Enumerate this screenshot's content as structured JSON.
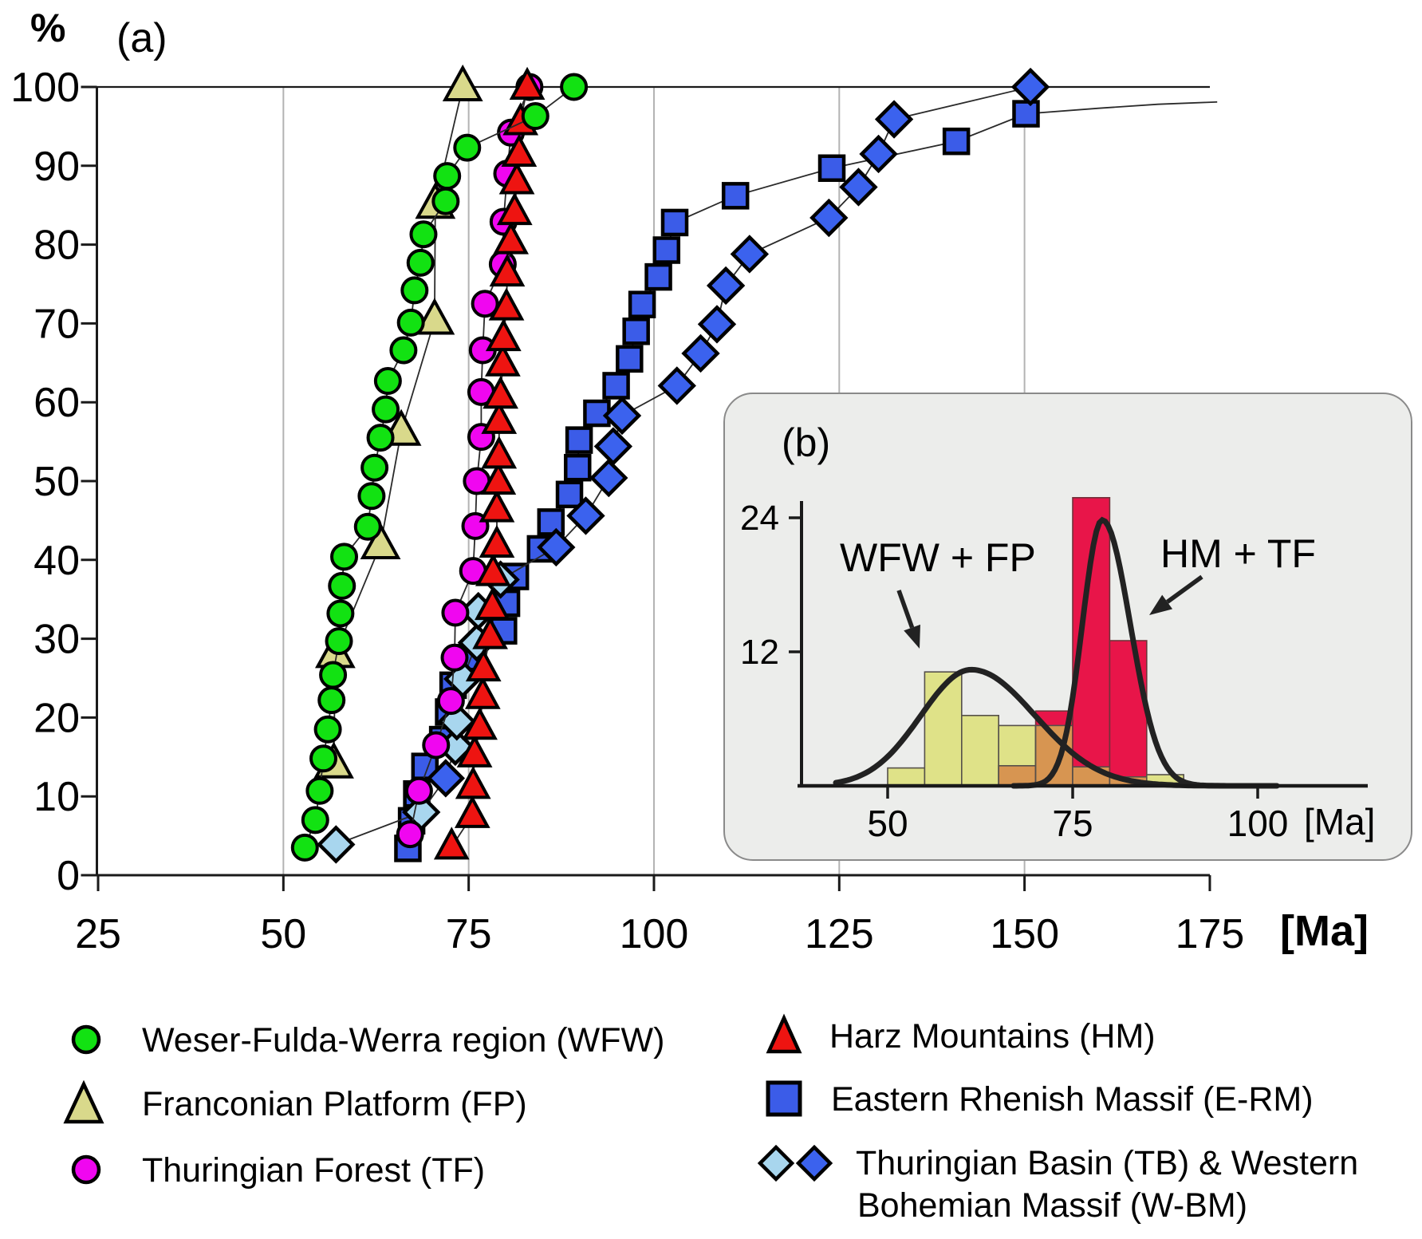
{
  "figure": {
    "panel_a": "(a)",
    "panel_b": "(b)"
  },
  "colors": {
    "wfw": "#12e212",
    "fp": "#d9d98b",
    "tf": "#f006f0",
    "hm": "#ee1411",
    "erm": "#3b5ce8",
    "tb": "#a8d6ee",
    "wbm": "#3b62ee",
    "hist_yellow": "#dfe288",
    "hist_crimson": "#e81549",
    "hist_orange": "#d79551",
    "inset_bg": "#ecedeb",
    "grid": "#b3b3b3",
    "axis": "#1a1a1a",
    "series_line": "#2a2a2a",
    "curve": "#222222"
  },
  "chart_data": [
    {
      "type": "line",
      "id": "panel_a_cumulative_ages",
      "title": "(a)",
      "xlabel": "[Ma]",
      "ylabel": "%",
      "xlim": [
        25,
        176.5
      ],
      "ylim": [
        0,
        100
      ],
      "x_ticks": [
        25,
        50,
        75,
        100,
        125,
        150,
        175
      ],
      "y_ticks": [
        0,
        10,
        20,
        30,
        40,
        50,
        60,
        70,
        80,
        90,
        100
      ],
      "gridlines_x": [
        50,
        75,
        100,
        125,
        150
      ],
      "legend_position": "below",
      "series": [
        {
          "id": "fp",
          "name": "Franconian Platform (FP)",
          "marker": "triangle-lg",
          "color_key": "fp",
          "points": [
            [
              56.8,
              14.1
            ],
            [
              57.0,
              28.1
            ],
            [
              63.1,
              41.9
            ],
            [
              65.9,
              56.3
            ],
            [
              70.4,
              70.4
            ],
            [
              70.5,
              85.1
            ],
            [
              74.2,
              100
            ]
          ]
        },
        {
          "id": "erm",
          "name": "Eastern Rhenish Massif (E-RM)",
          "marker": "square",
          "color_key": "erm",
          "points": [
            [
              66.8,
              3.4
            ],
            [
              67.3,
              6.9
            ],
            [
              68.0,
              10.3
            ],
            [
              69.1,
              13.8
            ],
            [
              71.5,
              17.2
            ],
            [
              72.3,
              20.7
            ],
            [
              72.9,
              24.1
            ],
            [
              75.0,
              27.6
            ],
            [
              79.7,
              31.0
            ],
            [
              80.1,
              34.5
            ],
            [
              81.3,
              37.9
            ],
            [
              84.7,
              41.4
            ],
            [
              86.1,
              44.8
            ],
            [
              88.6,
              48.3
            ],
            [
              89.7,
              51.7
            ],
            [
              89.9,
              55.2
            ],
            [
              92.3,
              58.6
            ],
            [
              94.9,
              62.1
            ],
            [
              96.7,
              65.5
            ],
            [
              97.6,
              69.0
            ],
            [
              98.4,
              72.4
            ],
            [
              100.6,
              75.9
            ],
            [
              101.7,
              79.3
            ],
            [
              102.8,
              82.8
            ],
            [
              111.0,
              86.2
            ],
            [
              124.0,
              89.7
            ],
            [
              140.8,
              93.1
            ],
            [
              150.2,
              96.6
            ]
          ],
          "tail": [
            [
              160,
              97.3
            ],
            [
              168,
              97.8
            ],
            [
              176,
              98.1
            ]
          ]
        },
        {
          "id": "tb_wbm",
          "name": "Thuringian Basin (TB) & Western Bohemian Massif (W-BM)",
          "marker": "diamond",
          "color_key": "wbm",
          "points": [
            [
              57.1,
              3.9,
              "tb"
            ],
            [
              68.6,
              8.0,
              "tb"
            ],
            [
              71.9,
              12.3,
              "wbm"
            ],
            [
              73.2,
              16.3,
              "tb"
            ],
            [
              73.4,
              19.5,
              "tb"
            ],
            [
              74.2,
              24.9,
              "tb"
            ],
            [
              76.1,
              29.5,
              "tb"
            ],
            [
              76.3,
              33.5,
              "tb"
            ],
            [
              79.3,
              37.5,
              "tb"
            ],
            [
              86.8,
              41.6,
              "wbm"
            ],
            [
              90.8,
              45.6,
              "wbm"
            ],
            [
              93.9,
              50.4,
              "wbm"
            ],
            [
              94.5,
              54.4,
              "wbm"
            ],
            [
              95.7,
              58.3,
              "wbm"
            ],
            [
              103.1,
              62.1,
              "wbm"
            ],
            [
              106.3,
              66.2,
              "wbm"
            ],
            [
              108.5,
              69.9,
              "wbm"
            ],
            [
              109.7,
              74.8,
              "wbm"
            ],
            [
              112.9,
              78.8,
              "wbm"
            ],
            [
              123.6,
              83.4,
              "wbm"
            ],
            [
              127.6,
              87.3,
              "wbm"
            ],
            [
              130.3,
              91.5,
              "wbm"
            ],
            [
              132.4,
              95.9,
              "wbm"
            ],
            [
              150.8,
              100,
              "wbm"
            ]
          ]
        },
        {
          "id": "tf",
          "name": "Thuringian Forest (TF)",
          "marker": "circle",
          "color_key": "tf",
          "points": [
            [
              67.1,
              5.2
            ],
            [
              68.3,
              10.7
            ],
            [
              70.6,
              16.5
            ],
            [
              72.6,
              22.1
            ],
            [
              73.1,
              27.6
            ],
            [
              73.2,
              33.3
            ],
            [
              75.6,
              38.6
            ],
            [
              75.9,
              44.3
            ],
            [
              76.1,
              50.0
            ],
            [
              76.7,
              55.6
            ],
            [
              76.7,
              61.3
            ],
            [
              76.9,
              66.6
            ],
            [
              77.2,
              72.5
            ],
            [
              79.6,
              77.5
            ],
            [
              79.7,
              82.9
            ],
            [
              80.2,
              89.0
            ],
            [
              80.7,
              94.2
            ],
            [
              83.2,
              100
            ]
          ]
        },
        {
          "id": "hm",
          "name": "Harz Mountains (HM)",
          "marker": "triangle",
          "color_key": "hm",
          "points": [
            [
              72.7,
              3.6
            ],
            [
              75.5,
              7.6
            ],
            [
              75.6,
              11.3
            ],
            [
              75.8,
              15.3
            ],
            [
              76.5,
              18.8
            ],
            [
              76.9,
              22.7
            ],
            [
              77.0,
              26.2
            ],
            [
              77.9,
              30.3
            ],
            [
              78.2,
              34.0
            ],
            [
              78.3,
              38.3
            ],
            [
              78.8,
              41.9
            ],
            [
              78.8,
              46.4
            ],
            [
              79.0,
              49.9
            ],
            [
              79.1,
              53.2
            ],
            [
              79.1,
              57.6
            ],
            [
              79.3,
              60.8
            ],
            [
              79.6,
              64.9
            ],
            [
              79.7,
              68.1
            ],
            [
              80.1,
              72.0
            ],
            [
              80.2,
              76.3
            ],
            [
              80.7,
              80.4
            ],
            [
              81.2,
              84.1
            ],
            [
              81.5,
              88.0
            ],
            [
              81.8,
              91.5
            ],
            [
              82.0,
              95.5
            ],
            [
              82.9,
              100
            ]
          ]
        },
        {
          "id": "wfw",
          "name": "Weser-Fulda-Werra region (WFW)",
          "marker": "circle",
          "color_key": "wfw",
          "points": [
            [
              52.9,
              3.5
            ],
            [
              54.3,
              7.0
            ],
            [
              54.9,
              10.7
            ],
            [
              55.4,
              14.8
            ],
            [
              56.0,
              18.5
            ],
            [
              56.5,
              22.2
            ],
            [
              56.7,
              25.4
            ],
            [
              57.5,
              29.7
            ],
            [
              57.7,
              33.2
            ],
            [
              57.9,
              36.7
            ],
            [
              58.2,
              40.4
            ],
            [
              61.4,
              44.2
            ],
            [
              61.9,
              48.1
            ],
            [
              62.3,
              51.7
            ],
            [
              63.1,
              55.5
            ],
            [
              63.8,
              59.1
            ],
            [
              64.1,
              62.7
            ],
            [
              66.2,
              66.6
            ],
            [
              67.2,
              70.1
            ],
            [
              67.7,
              74.2
            ],
            [
              68.5,
              77.7
            ],
            [
              68.9,
              81.3
            ],
            [
              71.9,
              85.5
            ],
            [
              72.1,
              88.7
            ],
            [
              74.8,
              92.3
            ],
            [
              84.0,
              96.3
            ],
            [
              89.2,
              100
            ]
          ]
        }
      ]
    },
    {
      "type": "bar",
      "id": "panel_b_histogram",
      "title": "(b)",
      "x_unit": "[Ma]",
      "x_ticks": [
        50,
        75,
        100
      ],
      "y_ticks": [
        12,
        24
      ],
      "ylim": [
        0,
        26
      ],
      "bin_width": 5,
      "bins": [
        {
          "x0": 50,
          "wfw_fp": 1.6,
          "hm_tf": 0
        },
        {
          "x0": 55,
          "wfw_fp": 10.2,
          "hm_tf": 0
        },
        {
          "x0": 60,
          "wfw_fp": 6.3,
          "hm_tf": 0
        },
        {
          "x0": 65,
          "wfw_fp": 5.4,
          "hm_tf": 1.8
        },
        {
          "x0": 70,
          "wfw_fp": 5.4,
          "hm_tf": 6.7
        },
        {
          "x0": 75,
          "wfw_fp": 1.7,
          "hm_tf": 25.8
        },
        {
          "x0": 80,
          "wfw_fp": 0.8,
          "hm_tf": 13.0
        },
        {
          "x0": 85,
          "wfw_fp": 1.0,
          "hm_tf": 0
        }
      ],
      "curves": [
        {
          "label": "WFW + FP",
          "amp": 10.4,
          "mean": 61.3,
          "sigma_l": 6.8,
          "sigma_r": 8.6,
          "range": [
            43,
            97
          ]
        },
        {
          "label": "HM + TF",
          "amp": 23.8,
          "mean": 79.0,
          "sigma_l": 2.7,
          "sigma_r": 3.8,
          "range": [
            67,
            103
          ]
        }
      ],
      "annotations": [
        {
          "text": "WFW + FP"
        },
        {
          "text": "HM + TF"
        }
      ]
    }
  ],
  "legend": {
    "left": [
      {
        "id": "wfw",
        "marker": "circle",
        "color_key": "wfw",
        "label": "Weser-Fulda-Werra region (WFW)"
      },
      {
        "id": "fp",
        "marker": "triangle-lg",
        "color_key": "fp",
        "label": "Franconian Platform (FP)"
      },
      {
        "id": "tf",
        "marker": "circle",
        "color_key": "tf",
        "label": "Thuringian Forest (TF)"
      }
    ],
    "right": [
      {
        "id": "hm",
        "marker": "triangle",
        "color_key": "hm",
        "label": "Harz Mountains (HM)"
      },
      {
        "id": "erm",
        "marker": "square",
        "color_key": "erm",
        "label": "Eastern Rhenish Massif (E-RM)"
      },
      {
        "id": "tb_wbm",
        "marker": "diamond-pair",
        "color_keys": [
          "tb",
          "wbm"
        ],
        "label_lines": [
          "Thuringian Basin (TB) & Western",
          "Bohemian Massif (W-BM)"
        ]
      }
    ]
  }
}
